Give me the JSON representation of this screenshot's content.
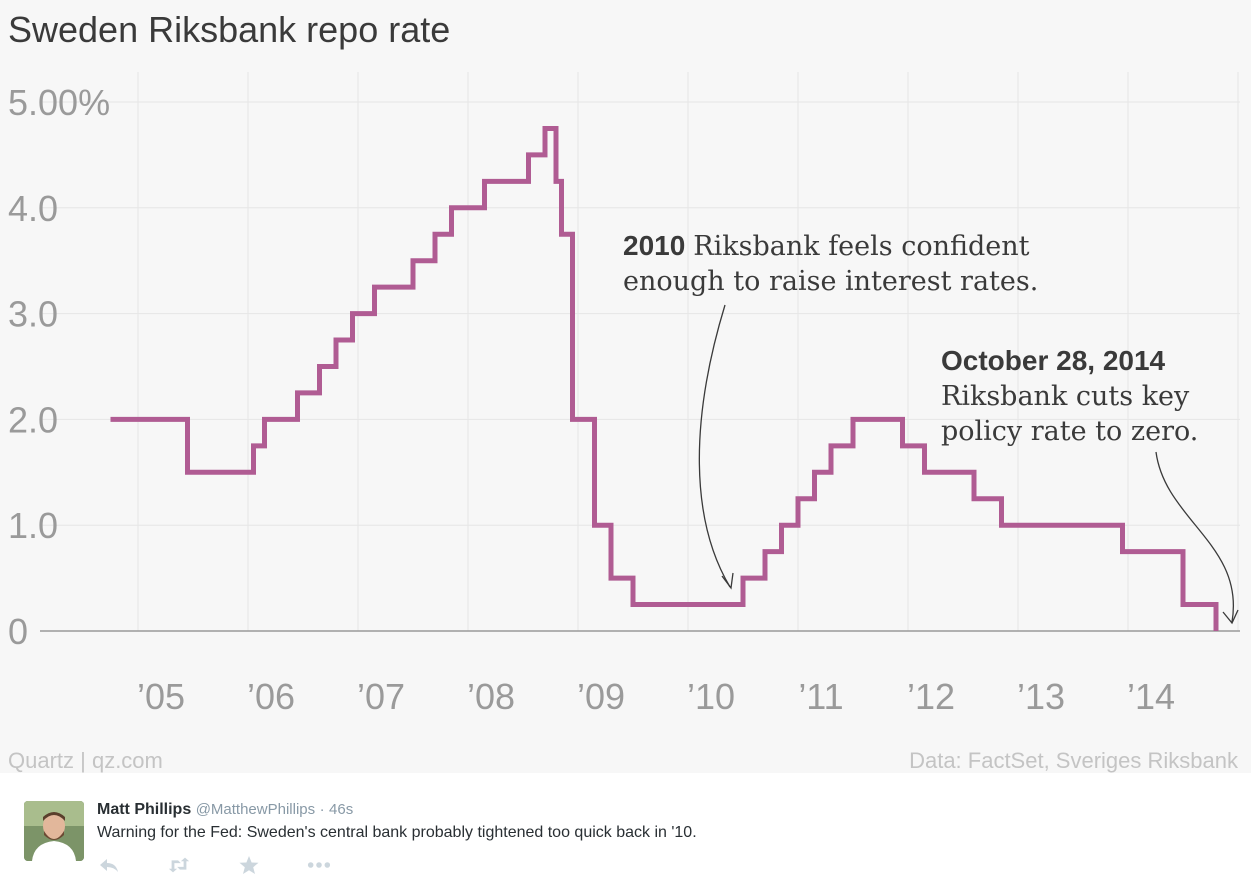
{
  "chart_data": {
    "type": "line",
    "step": true,
    "title": "Sweden Riksbank repo rate",
    "y_tick_labels": [
      "0",
      "1.0",
      "2.0",
      "3.0",
      "4.0",
      "5.00%"
    ],
    "y_ticks": [
      0,
      1,
      2,
      3,
      4,
      5
    ],
    "ylim": [
      0,
      5
    ],
    "x_tick_labels": [
      "’05",
      "’06",
      "’07",
      "’08",
      "’09",
      "’10",
      "’11",
      "’12",
      "’13",
      "’14"
    ],
    "x_ticks": [
      2005,
      2006,
      2007,
      2008,
      2009,
      2010,
      2011,
      2012,
      2013,
      2014
    ],
    "xlim": [
      2004.4,
      2014.9
    ],
    "series": [
      {
        "name": "Repo rate",
        "color": "#b05c93",
        "x": [
          2004.75,
          2005.45,
          2006.05,
          2006.15,
          2006.45,
          2006.65,
          2006.8,
          2006.95,
          2007.15,
          2007.5,
          2007.7,
          2007.85,
          2008.15,
          2008.55,
          2008.7,
          2008.8,
          2008.85,
          2008.95,
          2009.15,
          2009.3,
          2009.5,
          2010.5,
          2010.7,
          2010.85,
          2011.0,
          2011.15,
          2011.3,
          2011.5,
          2011.95,
          2012.15,
          2012.6,
          2012.85,
          2013.95,
          2014.5,
          2014.8
        ],
        "y": [
          2.0,
          1.5,
          1.75,
          2.0,
          2.25,
          2.5,
          2.75,
          3.0,
          3.25,
          3.5,
          3.75,
          4.0,
          4.25,
          4.5,
          4.75,
          4.25,
          3.75,
          2.0,
          1.0,
          0.5,
          0.25,
          0.5,
          0.75,
          1.0,
          1.25,
          1.5,
          1.75,
          2.0,
          1.75,
          1.5,
          1.25,
          1.0,
          0.75,
          0.25,
          0.0
        ]
      }
    ],
    "annotations": [
      {
        "bold": "2010",
        "text_line1": "Riksbank feels confident",
        "text_line2": "enough to raise interest rates.",
        "x": 2010.4,
        "y": 0.4
      },
      {
        "bold": "October 28, 2014",
        "text_line1": "Riksbank cuts key",
        "text_line2": "policy rate to zero.",
        "x": 2014.8,
        "y": 0.05
      }
    ],
    "source_left": "Quartz | qz.com",
    "source_right": "Data: FactSet, Sveriges Riksbank",
    "grid": true
  },
  "tweet": {
    "name": "Matt Phillips",
    "handle": "@MatthewPhillips",
    "separator": "·",
    "time": "46s",
    "text": "Warning for the Fed: Sweden's central bank probably tightened too quick back in '10.",
    "icons": [
      "reply-icon",
      "retweet-icon",
      "favorite-icon",
      "more-icon"
    ]
  }
}
